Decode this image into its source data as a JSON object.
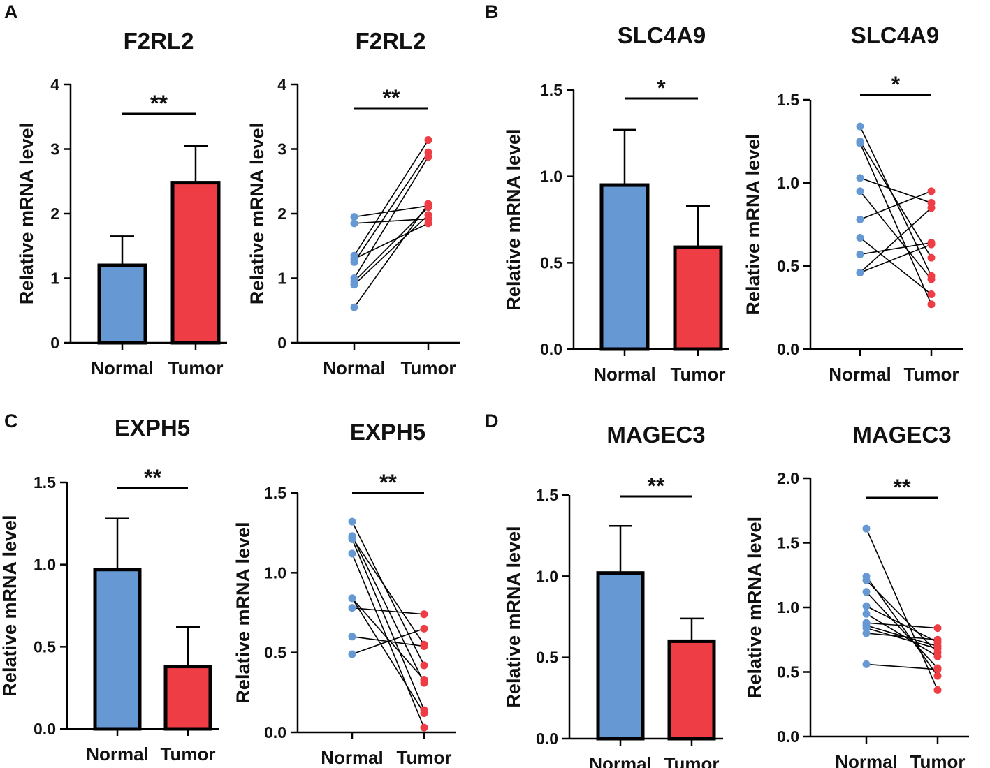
{
  "panels": [
    {
      "letter": "A"
    },
    {
      "letter": "B"
    },
    {
      "letter": "C"
    },
    {
      "letter": "D"
    }
  ],
  "colors": {
    "normal": "#6699d3",
    "tumor": "#ee3d44",
    "ink": "#000000"
  },
  "chart_data": [
    {
      "type": "bar",
      "panel": "A",
      "title": "F2RL2",
      "xlabel": "",
      "ylabel": "Relative mRNA level",
      "categories": [
        "Normal",
        "Tumor"
      ],
      "values": [
        1.2,
        2.48
      ],
      "error_upper": [
        1.65,
        3.05
      ],
      "ylim": [
        0,
        4
      ],
      "yticks": [
        "0",
        "1",
        "2",
        "3",
        "4"
      ],
      "ytick_values": [
        0,
        1,
        2,
        3,
        4
      ],
      "significance": "**"
    },
    {
      "type": "scatter",
      "panel": "A",
      "title": "F2RL2",
      "xlabel": "",
      "ylabel": "Relative mRNA level",
      "categories": [
        "Normal",
        "Tumor"
      ],
      "pairs": [
        [
          1.95,
          2.12
        ],
        [
          1.85,
          1.92
        ],
        [
          1.35,
          3.14
        ],
        [
          1.3,
          1.85
        ],
        [
          1.25,
          2.95
        ],
        [
          1.0,
          2.88
        ],
        [
          0.95,
          2.1
        ],
        [
          0.9,
          1.98
        ],
        [
          0.55,
          2.15
        ]
      ],
      "ylim": [
        0,
        4
      ],
      "yticks": [
        "0",
        "1",
        "2",
        "3",
        "4"
      ],
      "ytick_values": [
        0,
        1,
        2,
        3,
        4
      ],
      "significance": "**"
    },
    {
      "type": "bar",
      "panel": "B",
      "title": "SLC4A9",
      "xlabel": "",
      "ylabel": "Relative mRNA level",
      "categories": [
        "Normal",
        "Tumor"
      ],
      "values": [
        0.95,
        0.59
      ],
      "error_upper": [
        1.27,
        0.83
      ],
      "ylim": [
        0,
        1.5
      ],
      "yticks": [
        "0.0",
        "0.5",
        "1.0",
        "1.5"
      ],
      "ytick_values": [
        0,
        0.5,
        1.0,
        1.5
      ],
      "significance": "*"
    },
    {
      "type": "scatter",
      "panel": "B",
      "title": "SLC4A9",
      "xlabel": "",
      "ylabel": "Relative mRNA level",
      "categories": [
        "Normal",
        "Tumor"
      ],
      "pairs": [
        [
          1.34,
          0.44
        ],
        [
          1.25,
          0.55
        ],
        [
          1.24,
          0.27
        ],
        [
          1.03,
          0.88
        ],
        [
          0.95,
          0.42
        ],
        [
          0.78,
          0.95
        ],
        [
          0.67,
          0.33
        ],
        [
          0.57,
          0.64
        ],
        [
          0.46,
          0.63
        ],
        [
          0.46,
          0.85
        ]
      ],
      "ylim": [
        0,
        1.5
      ],
      "yticks": [
        "0.0",
        "0.5",
        "1.0",
        "1.5"
      ],
      "ytick_values": [
        0,
        0.5,
        1.0,
        1.5
      ],
      "significance": "*"
    },
    {
      "type": "bar",
      "panel": "C",
      "title": "EXPH5",
      "xlabel": "",
      "ylabel": "Relative mRNA level",
      "categories": [
        "Normal",
        "Tumor"
      ],
      "values": [
        0.97,
        0.38
      ],
      "error_upper": [
        1.28,
        0.62
      ],
      "ylim": [
        0,
        1.5
      ],
      "yticks": [
        "0.0",
        "0.5",
        "1.0",
        "1.5"
      ],
      "ytick_values": [
        0,
        0.5,
        1.0,
        1.5
      ],
      "significance": "**"
    },
    {
      "type": "scatter",
      "panel": "C",
      "title": "EXPH5",
      "xlabel": "",
      "ylabel": "Relative mRNA level",
      "categories": [
        "Normal",
        "Tumor"
      ],
      "pairs": [
        [
          1.32,
          0.42
        ],
        [
          1.23,
          0.31
        ],
        [
          1.21,
          0.14
        ],
        [
          1.12,
          0.03
        ],
        [
          0.84,
          0.12
        ],
        [
          0.78,
          0.74
        ],
        [
          0.6,
          0.54
        ],
        [
          0.49,
          0.65
        ],
        [
          0.84,
          0.33
        ],
        [
          1.22,
          0.55
        ]
      ],
      "ylim": [
        0,
        1.5
      ],
      "yticks": [
        "0.0",
        "0.5",
        "1.0",
        "1.5"
      ],
      "ytick_values": [
        0,
        0.5,
        1.0,
        1.5
      ],
      "significance": "**"
    },
    {
      "type": "bar",
      "panel": "D",
      "title": "MAGEC3",
      "xlabel": "",
      "ylabel": "Relative mRNA level",
      "categories": [
        "Normal",
        "Tumor"
      ],
      "values": [
        1.02,
        0.6
      ],
      "error_upper": [
        1.31,
        0.74
      ],
      "ylim": [
        0,
        1.5
      ],
      "yticks": [
        "0.0",
        "0.5",
        "1.0",
        "1.5"
      ],
      "ytick_values": [
        0,
        0.5,
        1.0,
        1.5
      ],
      "significance": "**"
    },
    {
      "type": "scatter",
      "panel": "D",
      "title": "MAGEC3",
      "xlabel": "",
      "ylabel": "Relative mRNA level",
      "categories": [
        "Normal",
        "Tumor"
      ],
      "pairs": [
        [
          1.61,
          0.36
        ],
        [
          1.24,
          0.47
        ],
        [
          1.21,
          0.65
        ],
        [
          1.12,
          0.53
        ],
        [
          1.01,
          0.73
        ],
        [
          0.95,
          0.62
        ],
        [
          0.88,
          0.84
        ],
        [
          0.84,
          0.68
        ],
        [
          0.8,
          0.75
        ],
        [
          0.56,
          0.52
        ],
        [
          0.86,
          0.7
        ]
      ],
      "ylim": [
        0,
        2.0
      ],
      "yticks": [
        "0.0",
        "0.5",
        "1.0",
        "1.5",
        "2.0"
      ],
      "ytick_values": [
        0,
        0.5,
        1.0,
        1.5,
        2.0
      ],
      "significance": "**"
    }
  ]
}
